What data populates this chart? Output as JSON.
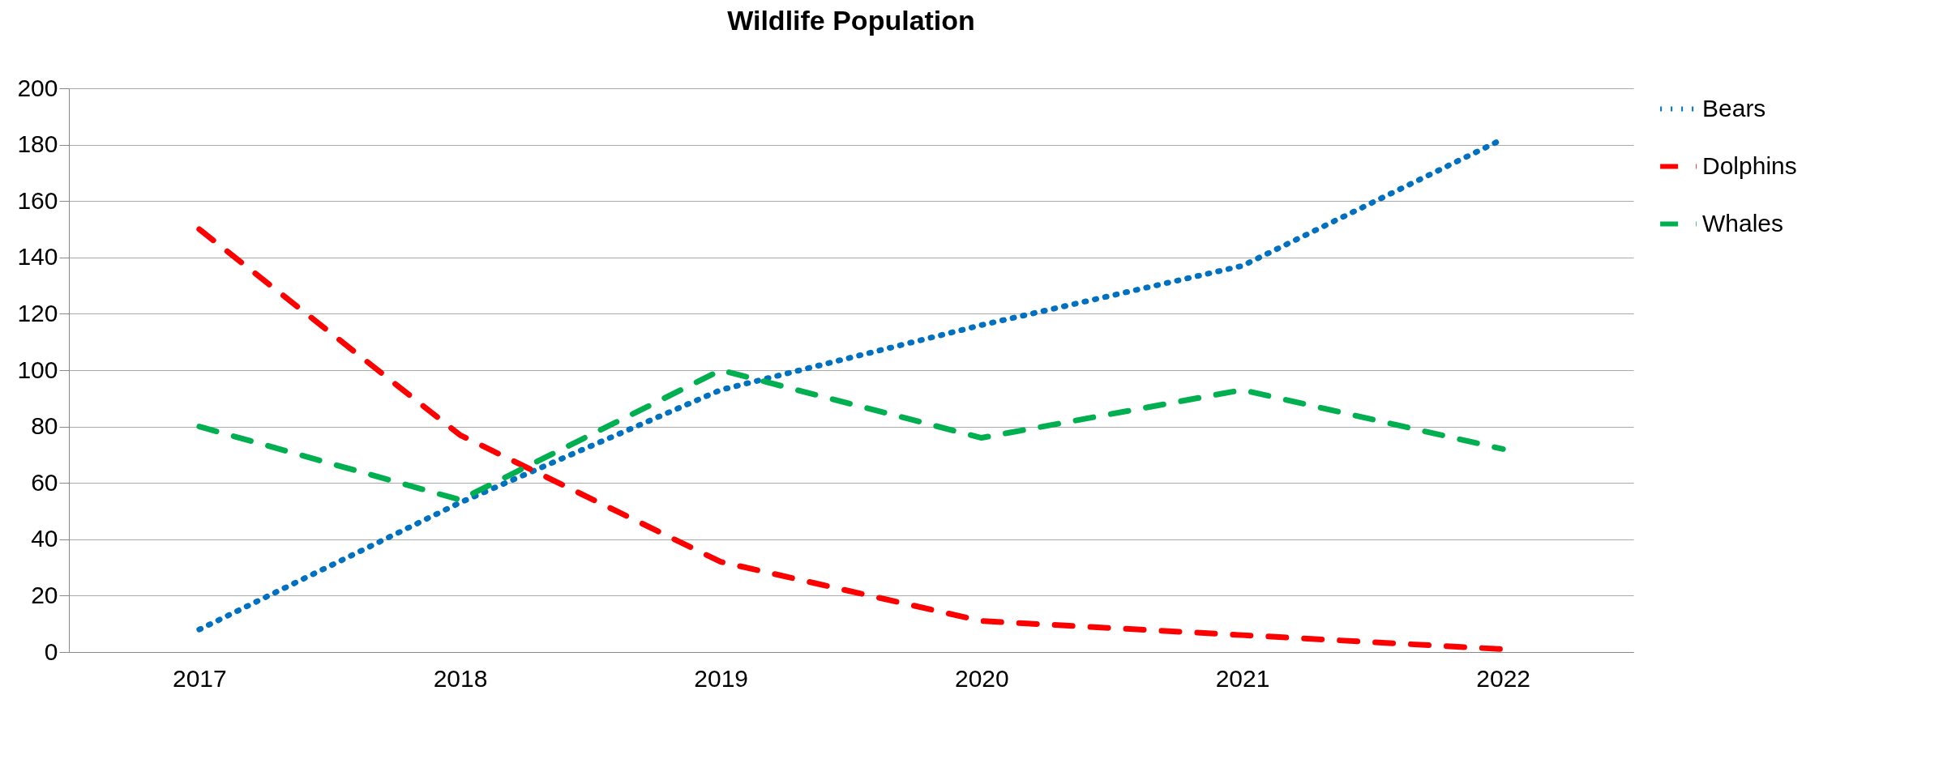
{
  "chart_data": {
    "type": "line",
    "title": "Wildlife Population",
    "categories": [
      "2017",
      "2018",
      "2019",
      "2020",
      "2021",
      "2022"
    ],
    "series": [
      {
        "name": "Bears",
        "color": "#0070c0",
        "line_style": "dotted",
        "values": [
          8,
          53,
          93,
          116,
          137,
          182
        ]
      },
      {
        "name": "Dolphins",
        "color": "#ff0000",
        "line_style": "dashed",
        "values": [
          150,
          77,
          32,
          11,
          6,
          1
        ]
      },
      {
        "name": "Whales",
        "color": "#00b050",
        "line_style": "dashed",
        "values": [
          80,
          54,
          100,
          76,
          93,
          72
        ]
      }
    ],
    "ylim": [
      0,
      200
    ],
    "yticks": [
      0,
      20,
      40,
      60,
      80,
      100,
      120,
      140,
      160,
      180,
      200
    ],
    "grid": "y",
    "legend": "right",
    "marker": "none"
  }
}
